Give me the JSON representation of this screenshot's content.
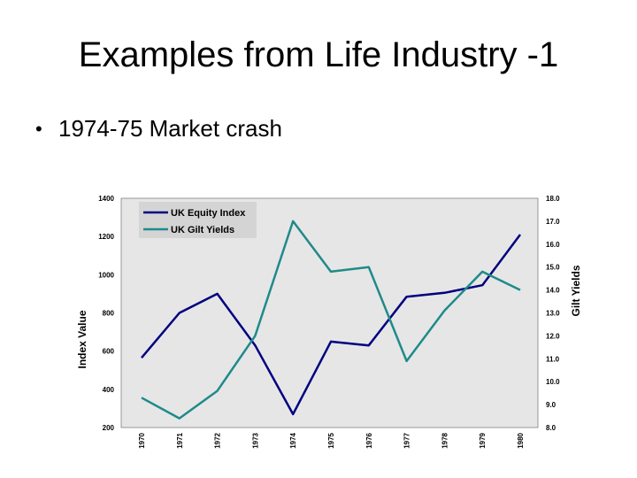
{
  "slide": {
    "title": "Examples from Life Industry -1",
    "bullet": "1974-75 Market crash"
  },
  "colors": {
    "equity": "#000080",
    "gilt": "#1f8a8a",
    "plot_bg": "#e6e6e6",
    "legend_bg": "#d4d4d4"
  },
  "chart_data": {
    "type": "line",
    "categories": [
      "1970",
      "1971",
      "1972",
      "1973",
      "1974",
      "1975",
      "1976",
      "1977",
      "1978",
      "1979",
      "1980"
    ],
    "ylabel": "Index Value",
    "y2label": "Gilt Yields",
    "ylim": [
      200,
      1400
    ],
    "y2lim": [
      8.0,
      18.0
    ],
    "yticks": [
      "200",
      "400",
      "600",
      "800",
      "1000",
      "1200",
      "1400"
    ],
    "y2ticks": [
      "8.0",
      "9.0",
      "10.0",
      "11.0",
      "12.0",
      "13.0",
      "14.0",
      "15.0",
      "16.0",
      "17.0",
      "18.0"
    ],
    "grid": false,
    "legend": "top-left",
    "series": [
      {
        "name": "UK Equity Index",
        "axis": "left",
        "values": [
          565,
          800,
          900,
          630,
          270,
          650,
          630,
          885,
          905,
          945,
          1210
        ]
      },
      {
        "name": "UK Gilt Yields",
        "axis": "right",
        "values": [
          9.3,
          8.4,
          9.6,
          12.0,
          17.0,
          14.8,
          15.0,
          10.9,
          13.1,
          14.8,
          14.0
        ]
      }
    ]
  }
}
